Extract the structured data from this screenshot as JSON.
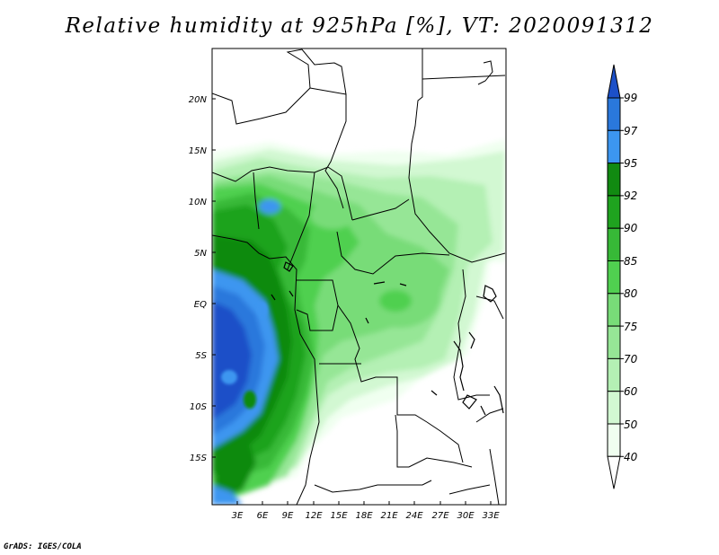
{
  "title": "Relative humidity at 925hPa [%], VT: 2020091312",
  "credit": "GrADS: IGES/COLA",
  "map": {
    "lat_labels": [
      "20N",
      "15N",
      "10N",
      "5N",
      "EQ",
      "5S",
      "10S",
      "15S"
    ],
    "lon_labels": [
      "3E",
      "6E",
      "9E",
      "12E",
      "15E",
      "18E",
      "21E",
      "24E",
      "27E",
      "30E",
      "33E"
    ]
  },
  "colorbar": {
    "labels": [
      "99",
      "97",
      "95",
      "92",
      "90",
      "85",
      "80",
      "75",
      "70",
      "60",
      "50",
      "40"
    ],
    "colors": [
      "#1c50c8",
      "#2a78dc",
      "#3c96f0",
      "#118a11",
      "#1fa31f",
      "#37b937",
      "#50d050",
      "#78dc78",
      "#96e696",
      "#b4f0b4",
      "#d2f8d2",
      "#f0fff0",
      "#ffffff"
    ]
  },
  "palette": {
    "deep_blue": "#1c50c8",
    "mid_blue": "#2a78dc",
    "light_blue": "#3c96f0",
    "dark_green": "#118a11",
    "green": "#1fa31f",
    "med_green": "#37b937",
    "bright_green": "#50d050",
    "light_green": "#78dc78",
    "pale_green": "#96e696",
    "paler_green": "#b4f0b4",
    "faint_green": "#d2f8d2",
    "near_white": "#f0fff0"
  }
}
